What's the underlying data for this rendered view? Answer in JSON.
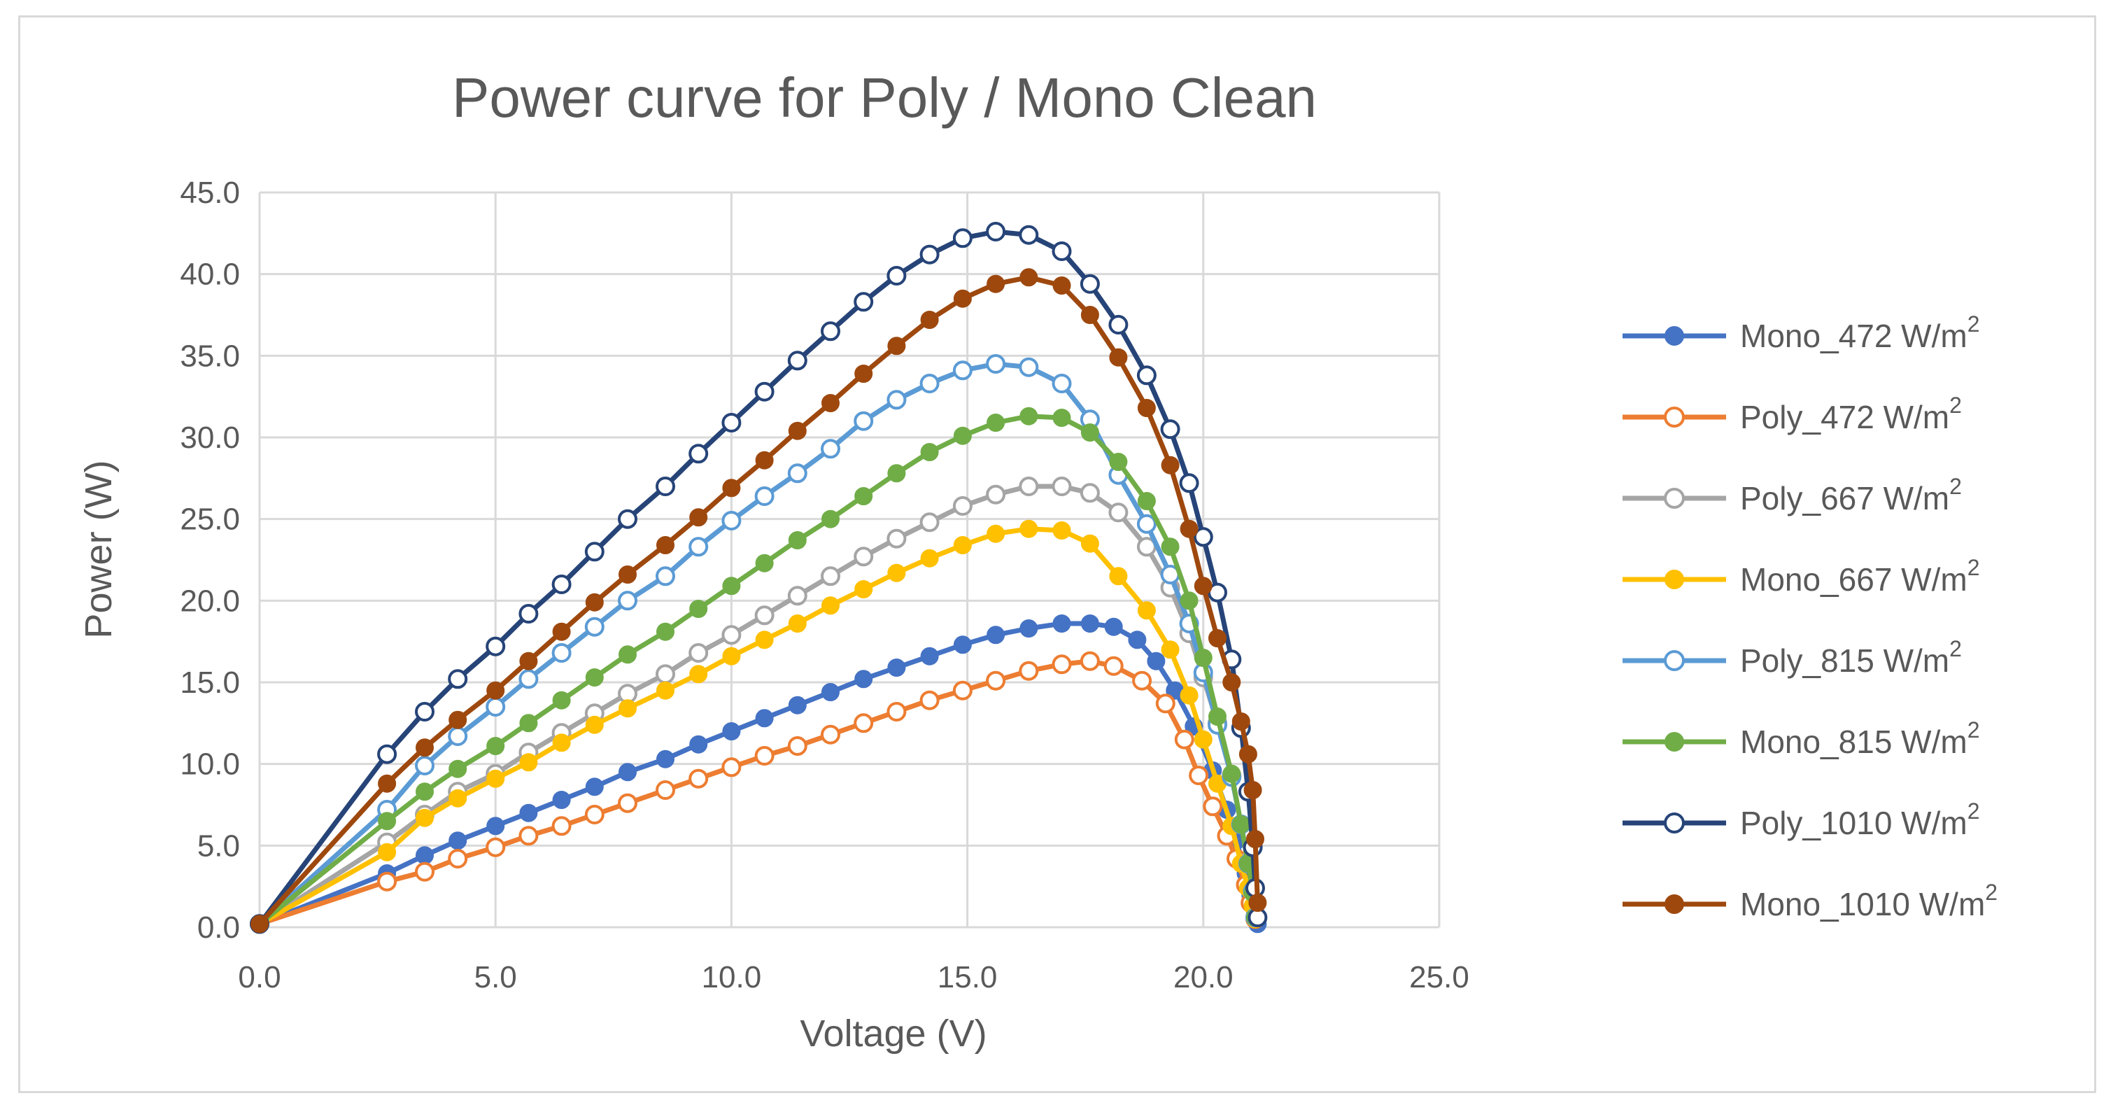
{
  "chart_data": {
    "type": "scatter",
    "title": "Power curve for Poly / Mono Clean",
    "xlabel": "Voltage (V)",
    "ylabel": "Power (W)",
    "xlim": [
      0,
      25
    ],
    "ylim": [
      0,
      45
    ],
    "x_ticks": [
      "0.0",
      "5.0",
      "10.0",
      "15.0",
      "20.0",
      "25.0"
    ],
    "y_ticks": [
      "0.0",
      "5.0",
      "10.0",
      "15.0",
      "20.0",
      "25.0",
      "30.0",
      "35.0",
      "40.0",
      "45.0"
    ],
    "grid": true,
    "legend_position": "right",
    "series": [
      {
        "name": "Mono_472 W/m",
        "unit_superscript": "2",
        "color": "#4472c4",
        "marker": "filled",
        "x": [
          0.0,
          2.7,
          3.5,
          4.2,
          5.0,
          5.7,
          6.4,
          7.1,
          7.8,
          8.6,
          9.3,
          10.0,
          10.7,
          11.4,
          12.1,
          12.8,
          13.5,
          14.2,
          14.9,
          15.6,
          16.3,
          17.0,
          17.6,
          18.1,
          18.6,
          19.0,
          19.4,
          19.8,
          20.2,
          20.5,
          20.7,
          20.9,
          21.0,
          21.1,
          21.15
        ],
        "y": [
          0.2,
          3.3,
          4.4,
          5.3,
          6.2,
          7.0,
          7.8,
          8.6,
          9.5,
          10.3,
          11.2,
          12.0,
          12.8,
          13.6,
          14.4,
          15.2,
          15.9,
          16.6,
          17.3,
          17.9,
          18.3,
          18.6,
          18.6,
          18.4,
          17.6,
          16.3,
          14.5,
          12.3,
          9.6,
          7.2,
          5.3,
          3.3,
          2.0,
          0.9,
          0.2
        ]
      },
      {
        "name": "Poly_472 W/m",
        "unit_superscript": "2",
        "color": "#ed7d31",
        "marker": "hollow",
        "x": [
          0.0,
          2.7,
          3.5,
          4.2,
          5.0,
          5.7,
          6.4,
          7.1,
          7.8,
          8.6,
          9.3,
          10.0,
          10.7,
          11.4,
          12.1,
          12.8,
          13.5,
          14.2,
          14.9,
          15.6,
          16.3,
          17.0,
          17.6,
          18.1,
          18.7,
          19.2,
          19.6,
          19.9,
          20.2,
          20.5,
          20.7,
          20.9,
          21.0,
          21.1
        ],
        "y": [
          0.2,
          2.8,
          3.4,
          4.2,
          4.9,
          5.6,
          6.2,
          6.9,
          7.6,
          8.4,
          9.1,
          9.8,
          10.5,
          11.1,
          11.8,
          12.5,
          13.2,
          13.9,
          14.5,
          15.1,
          15.7,
          16.1,
          16.3,
          16.0,
          15.1,
          13.7,
          11.5,
          9.3,
          7.4,
          5.6,
          4.2,
          2.6,
          1.5,
          0.5
        ]
      },
      {
        "name": "Poly_667 W/m",
        "unit_superscript": "2",
        "color": "#a5a5a5",
        "marker": "hollow",
        "x": [
          0.0,
          2.7,
          3.5,
          4.2,
          5.0,
          5.7,
          6.4,
          7.1,
          7.8,
          8.6,
          9.3,
          10.0,
          10.7,
          11.4,
          12.1,
          12.8,
          13.5,
          14.2,
          14.9,
          15.6,
          16.3,
          17.0,
          17.6,
          18.2,
          18.8,
          19.3,
          19.7,
          20.0,
          20.3,
          20.6,
          20.8,
          20.95,
          21.05,
          21.1
        ],
        "y": [
          0.2,
          5.2,
          6.9,
          8.3,
          9.4,
          10.7,
          11.9,
          13.1,
          14.3,
          15.5,
          16.8,
          17.9,
          19.1,
          20.3,
          21.5,
          22.7,
          23.8,
          24.8,
          25.8,
          26.5,
          27.0,
          27.0,
          26.6,
          25.4,
          23.3,
          20.8,
          18.0,
          15.3,
          12.5,
          9.3,
          6.3,
          4.0,
          2.2,
          0.6
        ]
      },
      {
        "name": "Mono_667 W/m",
        "unit_superscript": "2",
        "color": "#ffc000",
        "marker": "filled",
        "x": [
          0.0,
          2.7,
          3.5,
          4.2,
          5.0,
          5.7,
          6.4,
          7.1,
          7.8,
          8.6,
          9.3,
          10.0,
          10.7,
          11.4,
          12.1,
          12.8,
          13.5,
          14.2,
          14.9,
          15.6,
          16.3,
          17.0,
          17.6,
          18.2,
          18.8,
          19.3,
          19.7,
          20.0,
          20.3,
          20.6,
          20.8,
          20.95,
          21.05,
          21.1
        ],
        "y": [
          0.2,
          4.6,
          6.7,
          7.9,
          9.1,
          10.1,
          11.3,
          12.4,
          13.4,
          14.5,
          15.5,
          16.6,
          17.6,
          18.6,
          19.7,
          20.7,
          21.7,
          22.6,
          23.4,
          24.1,
          24.4,
          24.3,
          23.5,
          21.5,
          19.4,
          17.0,
          14.2,
          11.5,
          8.8,
          6.2,
          3.9,
          2.4,
          1.3,
          0.5
        ]
      },
      {
        "name": "Poly_815 W/m",
        "unit_superscript": "2",
        "color": "#5b9bd5",
        "marker": "hollow",
        "x": [
          0.0,
          2.7,
          3.5,
          4.2,
          5.0,
          5.7,
          6.4,
          7.1,
          7.8,
          8.6,
          9.3,
          10.0,
          10.7,
          11.4,
          12.1,
          12.8,
          13.5,
          14.2,
          14.9,
          15.6,
          16.3,
          17.0,
          17.6,
          18.2,
          18.8,
          19.3,
          19.7,
          20.0,
          20.3,
          20.6,
          20.8,
          20.95,
          21.05,
          21.1
        ],
        "y": [
          0.2,
          7.2,
          9.9,
          11.7,
          13.5,
          15.2,
          16.8,
          18.4,
          20.0,
          21.5,
          23.3,
          24.9,
          26.4,
          27.8,
          29.3,
          31.0,
          32.3,
          33.3,
          34.1,
          34.5,
          34.3,
          33.3,
          31.1,
          27.7,
          24.7,
          21.6,
          18.6,
          15.6,
          12.4,
          9.2,
          6.3,
          3.9,
          2.2,
          0.6
        ]
      },
      {
        "name": "Mono_815 W/m",
        "unit_superscript": "2",
        "color": "#70ad47",
        "marker": "filled",
        "x": [
          0.0,
          2.7,
          3.5,
          4.2,
          5.0,
          5.7,
          6.4,
          7.1,
          7.8,
          8.6,
          9.3,
          10.0,
          10.7,
          11.4,
          12.1,
          12.8,
          13.5,
          14.2,
          14.9,
          15.6,
          16.3,
          17.0,
          17.6,
          18.2,
          18.8,
          19.3,
          19.7,
          20.0,
          20.3,
          20.6,
          20.8,
          20.95,
          21.05,
          21.1
        ],
        "y": [
          0.2,
          6.5,
          8.3,
          9.7,
          11.1,
          12.5,
          13.9,
          15.3,
          16.7,
          18.1,
          19.5,
          20.9,
          22.3,
          23.7,
          25.0,
          26.4,
          27.8,
          29.1,
          30.1,
          30.9,
          31.3,
          31.2,
          30.3,
          28.5,
          26.1,
          23.3,
          20.0,
          16.5,
          12.9,
          9.4,
          6.3,
          3.9,
          2.1,
          0.6
        ]
      },
      {
        "name": "Poly_1010 W/m",
        "unit_superscript": "2",
        "color": "#264478",
        "marker": "hollow",
        "x": [
          0.0,
          2.7,
          3.5,
          4.2,
          5.0,
          5.7,
          6.4,
          7.1,
          7.8,
          8.6,
          9.3,
          10.0,
          10.7,
          11.4,
          12.1,
          12.8,
          13.5,
          14.2,
          14.9,
          15.6,
          16.3,
          17.0,
          17.6,
          18.2,
          18.8,
          19.3,
          19.7,
          20.0,
          20.3,
          20.6,
          20.8,
          20.95,
          21.05,
          21.1,
          21.15
        ],
        "y": [
          0.2,
          10.6,
          13.2,
          15.2,
          17.2,
          19.2,
          21.0,
          23.0,
          25.0,
          27.0,
          29.0,
          30.9,
          32.8,
          34.7,
          36.5,
          38.3,
          39.9,
          41.2,
          42.2,
          42.6,
          42.4,
          41.4,
          39.4,
          36.9,
          33.8,
          30.5,
          27.2,
          23.9,
          20.5,
          16.4,
          12.2,
          8.3,
          4.9,
          2.4,
          0.6
        ]
      },
      {
        "name": "Mono_1010 W/m",
        "unit_superscript": "2",
        "color": "#9e480e",
        "marker": "filled",
        "x": [
          0.0,
          2.7,
          3.5,
          4.2,
          5.0,
          5.7,
          6.4,
          7.1,
          7.8,
          8.6,
          9.3,
          10.0,
          10.7,
          11.4,
          12.1,
          12.8,
          13.5,
          14.2,
          14.9,
          15.6,
          16.3,
          17.0,
          17.6,
          18.2,
          18.8,
          19.3,
          19.7,
          20.0,
          20.3,
          20.6,
          20.8,
          20.95,
          21.05,
          21.1,
          21.15
        ],
        "y": [
          0.2,
          8.8,
          11.0,
          12.7,
          14.5,
          16.3,
          18.1,
          19.9,
          21.6,
          23.4,
          25.1,
          26.9,
          28.6,
          30.4,
          32.1,
          33.9,
          35.6,
          37.2,
          38.5,
          39.4,
          39.8,
          39.3,
          37.5,
          34.9,
          31.8,
          28.3,
          24.4,
          20.9,
          17.7,
          15.0,
          12.6,
          10.6,
          8.4,
          5.4,
          1.5
        ]
      }
    ]
  }
}
